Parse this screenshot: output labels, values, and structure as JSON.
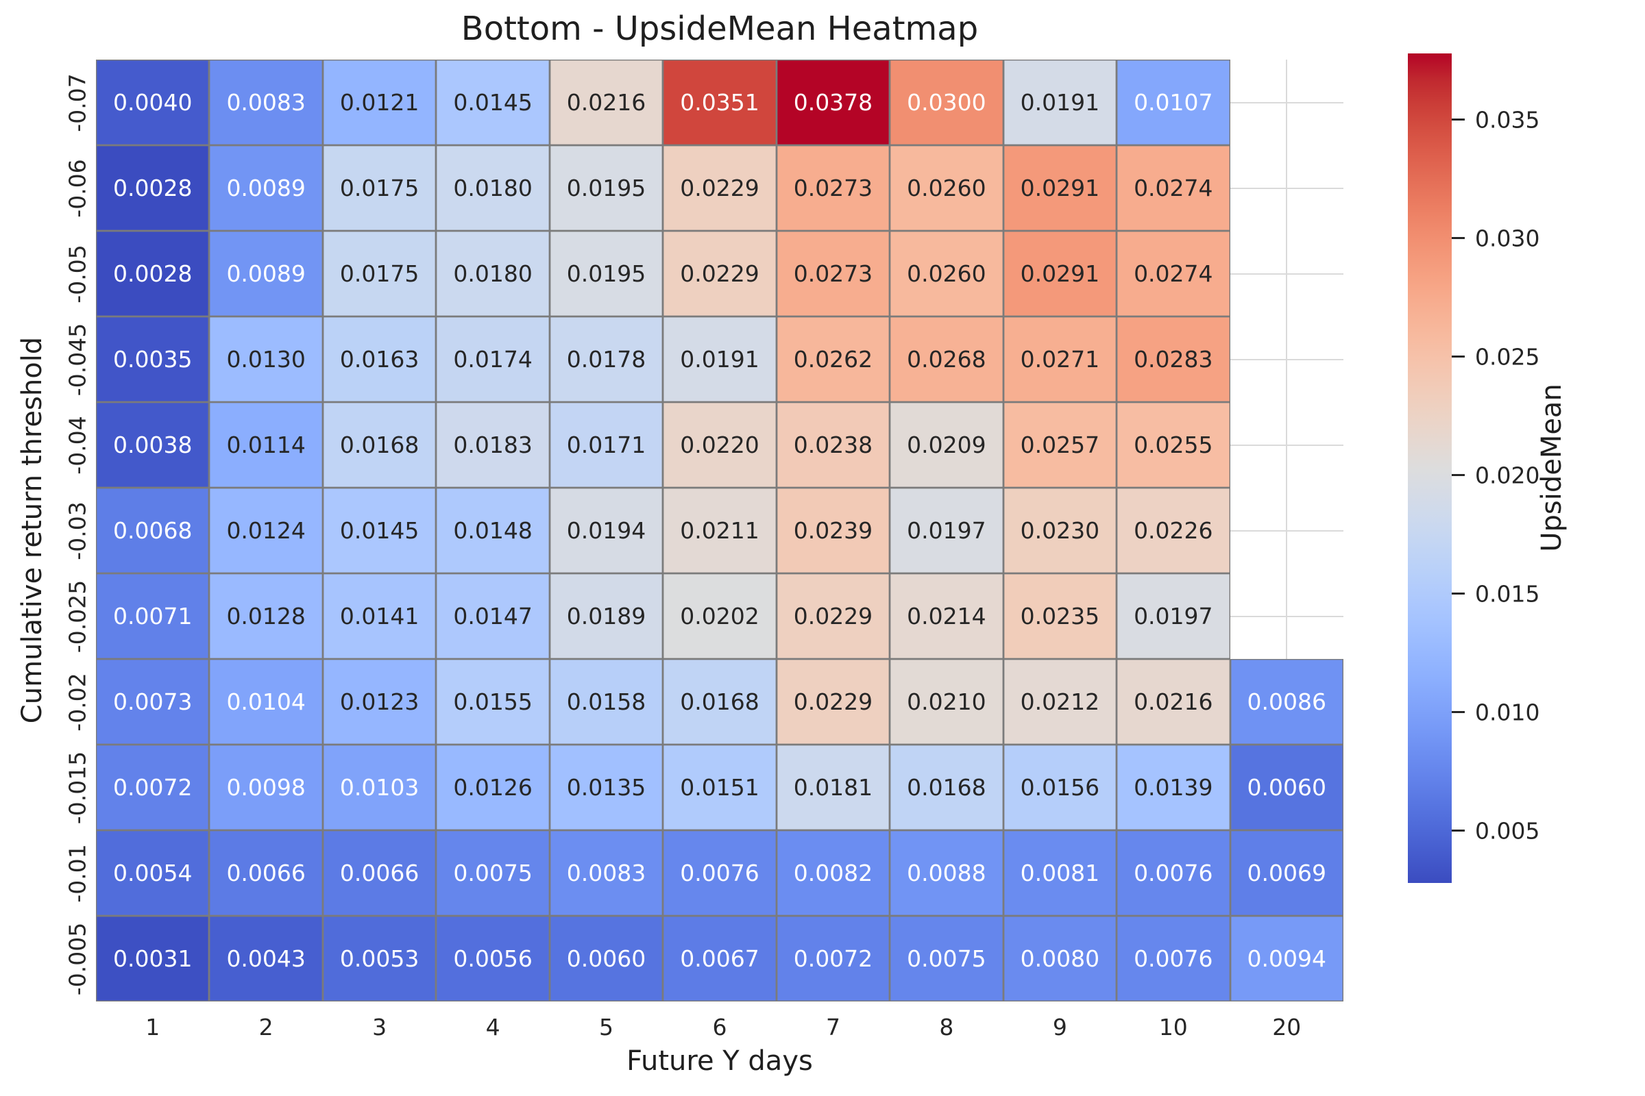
{
  "title": "Bottom - UpsideMean Heatmap",
  "xlabel": "Future Y days",
  "ylabel": "Cumulative return threshold",
  "colorbar": {
    "label": "UpsideMean",
    "ticks": [
      {
        "value": 0.005,
        "label": "0.005"
      },
      {
        "value": 0.01,
        "label": "0.010"
      },
      {
        "value": 0.015,
        "label": "0.015"
      },
      {
        "value": 0.02,
        "label": "0.020"
      },
      {
        "value": 0.025,
        "label": "0.025"
      },
      {
        "value": 0.03,
        "label": "0.030"
      },
      {
        "value": 0.035,
        "label": "0.035"
      }
    ]
  },
  "chart_data": {
    "type": "heatmap",
    "title": "Bottom - UpsideMean Heatmap",
    "xlabel": "Future Y days",
    "ylabel": "Cumulative return threshold",
    "colormap": "coolwarm",
    "vmin": 0.0028,
    "vmax": 0.0378,
    "value_decimals": 4,
    "legend_position": "right-colorbar",
    "grid": "whitegrid-on-missing-cells",
    "x_categories": [
      "1",
      "2",
      "3",
      "4",
      "5",
      "6",
      "7",
      "8",
      "9",
      "10",
      "20"
    ],
    "y_categories": [
      "-0.07",
      "-0.06",
      "-0.05",
      "-0.045",
      "-0.04",
      "-0.03",
      "-0.025",
      "-0.02",
      "-0.015",
      "-0.01",
      "-0.005"
    ],
    "values": [
      [
        0.004,
        0.0083,
        0.0121,
        0.0145,
        0.0216,
        0.0351,
        0.0378,
        0.03,
        0.0191,
        0.0107,
        null
      ],
      [
        0.0028,
        0.0089,
        0.0175,
        0.018,
        0.0195,
        0.0229,
        0.0273,
        0.026,
        0.0291,
        0.0274,
        null
      ],
      [
        0.0028,
        0.0089,
        0.0175,
        0.018,
        0.0195,
        0.0229,
        0.0273,
        0.026,
        0.0291,
        0.0274,
        null
      ],
      [
        0.0035,
        0.013,
        0.0163,
        0.0174,
        0.0178,
        0.0191,
        0.0262,
        0.0268,
        0.0271,
        0.0283,
        null
      ],
      [
        0.0038,
        0.0114,
        0.0168,
        0.0183,
        0.0171,
        0.022,
        0.0238,
        0.0209,
        0.0257,
        0.0255,
        null
      ],
      [
        0.0068,
        0.0124,
        0.0145,
        0.0148,
        0.0194,
        0.0211,
        0.0239,
        0.0197,
        0.023,
        0.0226,
        null
      ],
      [
        0.0071,
        0.0128,
        0.0141,
        0.0147,
        0.0189,
        0.0202,
        0.0229,
        0.0214,
        0.0235,
        0.0197,
        null
      ],
      [
        0.0073,
        0.0104,
        0.0123,
        0.0155,
        0.0158,
        0.0168,
        0.0229,
        0.021,
        0.0212,
        0.0216,
        0.0086
      ],
      [
        0.0072,
        0.0098,
        0.0103,
        0.0126,
        0.0135,
        0.0151,
        0.0181,
        0.0168,
        0.0156,
        0.0139,
        0.006
      ],
      [
        0.0054,
        0.0066,
        0.0066,
        0.0075,
        0.0083,
        0.0076,
        0.0082,
        0.0088,
        0.0081,
        0.0076,
        0.0069
      ],
      [
        0.0031,
        0.0043,
        0.0053,
        0.0056,
        0.006,
        0.0067,
        0.0072,
        0.0075,
        0.008,
        0.0076,
        0.0094
      ]
    ]
  }
}
